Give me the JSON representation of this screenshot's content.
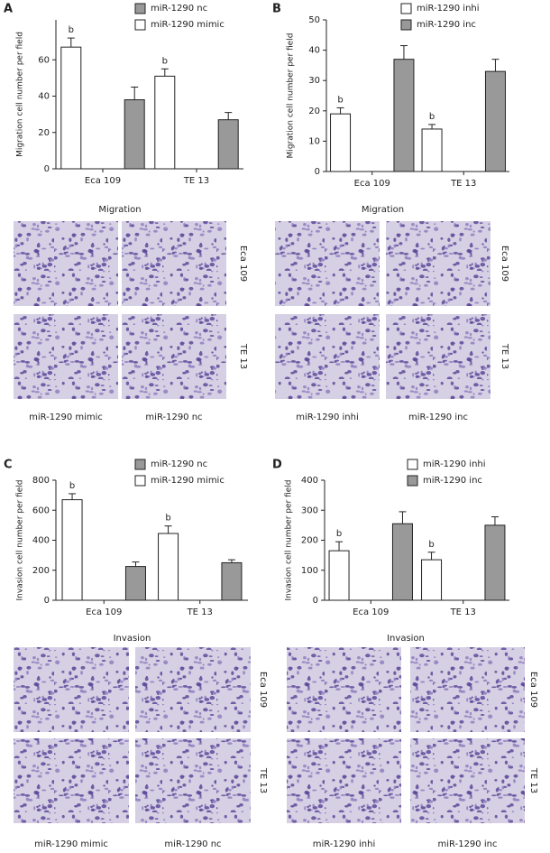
{
  "chart_data": [
    {
      "type": "bar",
      "panel": "A",
      "ylabel": "Migration cell number per field",
      "categories": [
        "Eca 109",
        "TE 13"
      ],
      "series": [
        {
          "name": "miR-1290 mimic",
          "color": "#ffffff",
          "values": [
            67,
            51
          ],
          "errors": [
            5,
            4
          ],
          "sig_labels": [
            "b",
            "b"
          ]
        },
        {
          "name": "miR-1290 nc",
          "color": "#999999",
          "values": [
            38,
            27
          ],
          "errors": [
            7,
            4
          ]
        }
      ],
      "legend_reversed": true,
      "ylim": [
        0,
        82
      ],
      "yticks": [
        0,
        20,
        40,
        60
      ]
    },
    {
      "type": "bar",
      "panel": "B",
      "ylabel": "Migration cell number per field",
      "categories": [
        "Eca 109",
        "TE 13"
      ],
      "series": [
        {
          "name": "miR-1290 inhi",
          "color": "#ffffff",
          "values": [
            19,
            14
          ],
          "errors": [
            2,
            1.5
          ],
          "sig_labels": [
            "b",
            "b"
          ]
        },
        {
          "name": "miR-1290 inc",
          "color": "#999999",
          "values": [
            37,
            33
          ],
          "errors": [
            4.5,
            4
          ]
        }
      ],
      "legend_reversed": false,
      "ylim": [
        0,
        50
      ],
      "yticks": [
        0,
        10,
        20,
        30,
        40,
        50
      ]
    },
    {
      "type": "bar",
      "panel": "C",
      "ylabel": "Invasion cell number per field",
      "categories": [
        "Eca 109",
        "TE 13"
      ],
      "series": [
        {
          "name": "miR-1290 mimic",
          "color": "#ffffff",
          "values": [
            670,
            445
          ],
          "errors": [
            40,
            50
          ],
          "sig_labels": [
            "b",
            "b"
          ]
        },
        {
          "name": "miR-1290 nc",
          "color": "#999999",
          "values": [
            225,
            250
          ],
          "errors": [
            30,
            20
          ]
        }
      ],
      "legend_reversed": true,
      "ylim": [
        0,
        800
      ],
      "yticks": [
        0,
        200,
        400,
        600,
        800
      ]
    },
    {
      "type": "bar",
      "panel": "D",
      "ylabel": "Invasion cell number per field",
      "categories": [
        "Eca 109",
        "TE 13"
      ],
      "series": [
        {
          "name": "miR-1290 inhi",
          "color": "#ffffff",
          "values": [
            165,
            135
          ],
          "errors": [
            30,
            25
          ],
          "sig_labels": [
            "b",
            "b"
          ]
        },
        {
          "name": "miR-1290 inc",
          "color": "#999999",
          "values": [
            255,
            250
          ],
          "errors": [
            40,
            28
          ]
        }
      ],
      "legend_reversed": false,
      "ylim": [
        0,
        400
      ],
      "yticks": [
        0,
        100,
        200,
        300,
        400
      ]
    }
  ],
  "micrographs": [
    {
      "title": "Migration",
      "rows": [
        "Eca 109",
        "TE 13"
      ],
      "columns": [
        "miR-1290 mimic",
        "miR-1290 nc"
      ]
    },
    {
      "title": "Migration",
      "rows": [
        "Eca 109",
        "TE 13"
      ],
      "columns": [
        "miR-1290 inhi",
        "miR-1290 inc"
      ]
    },
    {
      "title": "Invasion",
      "rows": [
        "Eca 109",
        "TE 13"
      ],
      "columns": [
        "miR-1290 mimic",
        "miR-1290 nc"
      ]
    },
    {
      "title": "Invasion",
      "rows": [
        "Eca 109",
        "TE 13"
      ],
      "columns": [
        "miR-1290 inhi",
        "miR-1290 inc"
      ]
    }
  ]
}
